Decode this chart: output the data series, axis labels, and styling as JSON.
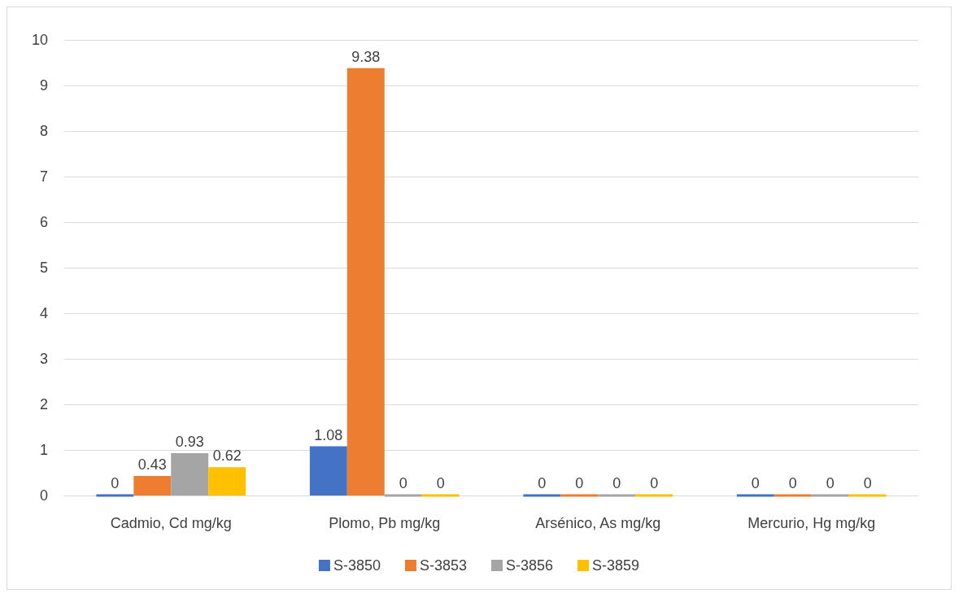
{
  "chart_data": {
    "type": "bar",
    "categories": [
      "Cadmio, Cd mg/kg",
      "Plomo, Pb mg/kg",
      "Arsénico, As mg/kg",
      "Mercurio, Hg mg/kg"
    ],
    "series": [
      {
        "name": "S-3850",
        "color": "#4472c4",
        "values": [
          0,
          1.08,
          0,
          0
        ]
      },
      {
        "name": "S-3853",
        "color": "#ed7d31",
        "values": [
          0.43,
          9.38,
          0,
          0
        ]
      },
      {
        "name": "S-3856",
        "color": "#a5a5a5",
        "values": [
          0.93,
          0,
          0,
          0
        ]
      },
      {
        "name": "S-3859",
        "color": "#ffc000",
        "values": [
          0.62,
          0,
          0,
          0
        ]
      }
    ],
    "ylim": [
      0,
      10
    ],
    "yticks": [
      0,
      1,
      2,
      3,
      4,
      5,
      6,
      7,
      8,
      9,
      10
    ],
    "grid": "y",
    "legend": "bottom",
    "data_labels": true
  }
}
